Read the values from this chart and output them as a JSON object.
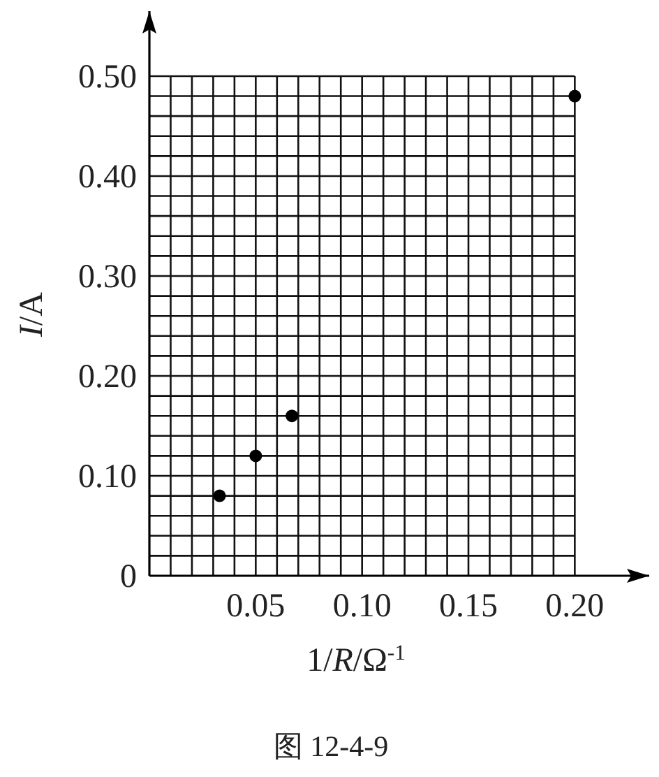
{
  "chart_data": {
    "type": "scatter",
    "xlabel": "1/*R*/Ω$^{-1}$",
    "ylabel": "*I*/A",
    "x": [
      0.033,
      0.05,
      0.067,
      0.2
    ],
    "values": [
      0.08,
      0.12,
      0.16,
      0.48
    ],
    "color": "#000000",
    "marker": "circle",
    "xlim": [
      0,
      0.235
    ],
    "ylim": [
      0,
      0.565
    ],
    "xticks": [
      {
        "value": 0.05,
        "label": "0.05"
      },
      {
        "value": 0.1,
        "label": "0.10"
      },
      {
        "value": 0.15,
        "label": "0.15"
      },
      {
        "value": 0.2,
        "label": "0.20"
      }
    ],
    "yticks": [
      0,
      {
        "value": 0.1,
        "label": "0.10"
      },
      {
        "value": 0.2,
        "label": "0.20"
      },
      {
        "value": 0.3,
        "label": "0.30"
      },
      {
        "value": 0.4,
        "label": "0.40"
      },
      {
        "value": 0.5,
        "label": "0.50"
      }
    ],
    "grid": true,
    "annotations": [
      "图 12-4-9"
    ]
  }
}
